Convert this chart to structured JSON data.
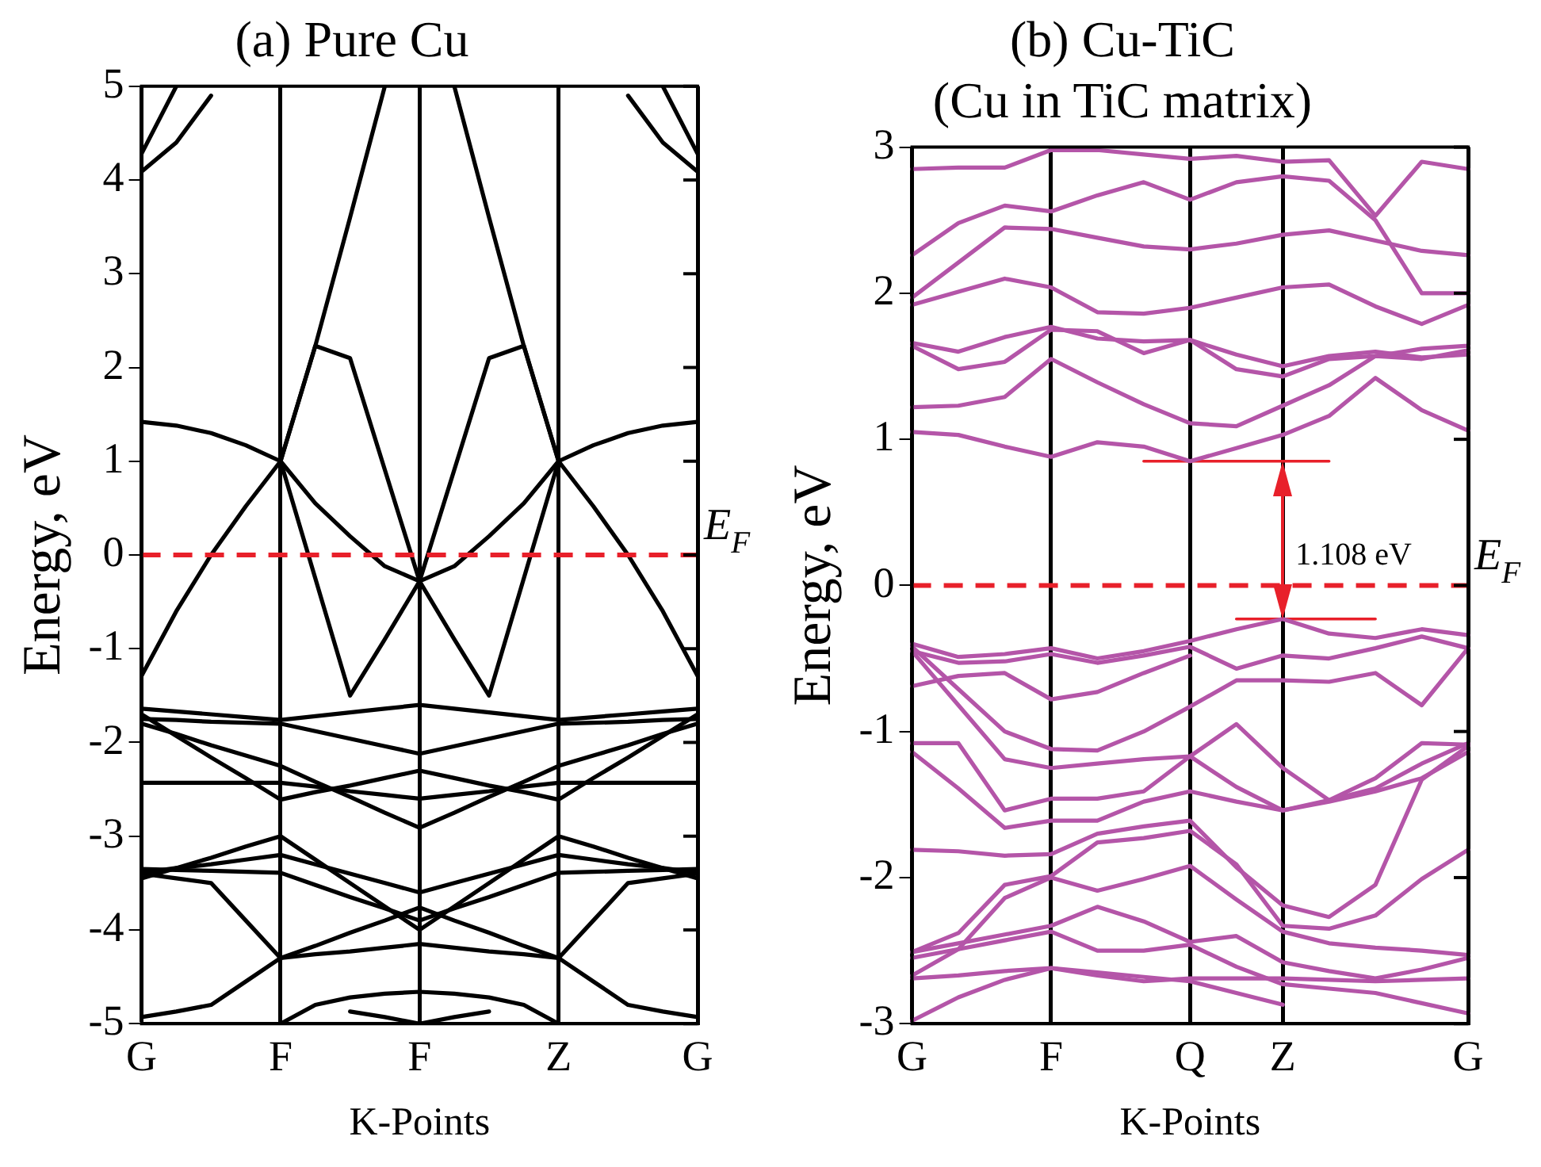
{
  "chart_data": [
    {
      "type": "line",
      "title": "(a) Pure Cu",
      "xlabel": "K-Points",
      "ylabel": "Energy, eV",
      "color": "#000000",
      "marker": "none",
      "grid": "x",
      "legend": false,
      "categories": [
        "G",
        null,
        null,
        null,
        "F",
        null,
        null,
        null,
        "F",
        null,
        null,
        null,
        "Z",
        null,
        null,
        null,
        "G"
      ],
      "ylim": [
        -5,
        5
      ],
      "yticks": [
        -5,
        -4,
        -3,
        -2,
        -1,
        0,
        1,
        2,
        3,
        4,
        5
      ],
      "ref_lines": [
        {
          "axis": "y",
          "value": 0,
          "label": "E$_{F}$",
          "color": "#e8202a",
          "line_style": "dashed"
        }
      ],
      "series": [
        {
          "values": [
            1.42,
            1.38,
            1.3,
            1.17,
            1.0,
            2.23,
            3.6,
            5.0,
            null,
            null,
            null,
            null,
            null,
            null,
            null,
            null,
            null
          ]
        },
        {
          "values": [
            null,
            null,
            null,
            null,
            null,
            null,
            null,
            null,
            null,
            5.0,
            3.6,
            2.23,
            1.0,
            1.17,
            1.3,
            1.38,
            1.42
          ]
        },
        {
          "values": [
            -1.29,
            -0.6,
            0.0,
            0.52,
            1.0,
            0.55,
            0.2,
            -0.12,
            -0.28,
            -0.12,
            0.2,
            0.55,
            1.0,
            0.52,
            0.0,
            -0.6,
            -1.29
          ]
        },
        {
          "values": [
            null,
            null,
            null,
            null,
            1.0,
            2.23,
            2.1,
            0.91,
            -0.28,
            -0.9,
            -1.5,
            -0.25,
            1.0,
            null,
            null,
            null,
            null
          ]
        },
        {
          "values": [
            null,
            null,
            null,
            null,
            1.0,
            -0.25,
            -1.5,
            -0.9,
            -0.28,
            0.91,
            2.1,
            2.23,
            1.0,
            null,
            null,
            null,
            null
          ]
        },
        {
          "values": [
            4.09,
            4.4,
            4.9,
            null,
            null,
            null,
            null,
            null,
            null,
            null,
            null,
            null,
            null,
            null,
            null,
            null,
            null
          ]
        },
        {
          "values": [
            4.28,
            5.0,
            null,
            null,
            null,
            null,
            null,
            null,
            null,
            null,
            null,
            null,
            null,
            null,
            null,
            null,
            null
          ]
        },
        {
          "values": [
            null,
            null,
            null,
            null,
            null,
            null,
            null,
            null,
            null,
            null,
            null,
            null,
            null,
            null,
            4.9,
            4.4,
            4.09
          ]
        },
        {
          "values": [
            null,
            null,
            null,
            null,
            null,
            null,
            null,
            null,
            null,
            null,
            null,
            null,
            null,
            null,
            null,
            5.0,
            4.28
          ]
        },
        {
          "values": [
            -1.64,
            -1.67,
            -1.7,
            -1.73,
            -1.76,
            -1.72,
            -1.68,
            -1.64,
            -1.6,
            -1.64,
            -1.68,
            -1.72,
            -1.76,
            -1.73,
            -1.7,
            -1.67,
            -1.64
          ]
        },
        {
          "values": [
            -1.75,
            -1.76,
            -1.78,
            -1.79,
            -1.8,
            -1.88,
            -1.96,
            -2.04,
            -2.12,
            -2.04,
            -1.96,
            -1.88,
            -1.8,
            -1.79,
            -1.78,
            -1.76,
            -1.75
          ]
        },
        {
          "values": [
            -2.43,
            -2.43,
            -2.43,
            -2.43,
            -2.43,
            -2.47,
            -2.52,
            -2.56,
            -2.6,
            -2.56,
            -2.52,
            -2.47,
            -2.43,
            -2.43,
            -2.43,
            -2.43,
            -2.43
          ]
        },
        {
          "values": [
            -1.7,
            -1.93,
            -2.16,
            -2.38,
            -2.61,
            -2.53,
            -2.46,
            -2.38,
            -2.3,
            -2.38,
            -2.46,
            -2.53,
            -2.61,
            -2.38,
            -2.16,
            -1.93,
            -1.7
          ]
        },
        {
          "values": [
            -1.8,
            -1.91,
            -2.03,
            -2.14,
            -2.25,
            -2.42,
            -2.58,
            -2.75,
            -2.91,
            -2.75,
            -2.58,
            -2.42,
            -2.25,
            -2.14,
            -2.03,
            -1.91,
            -1.8
          ]
        },
        {
          "values": [
            -3.39,
            -3.34,
            -3.3,
            -3.25,
            -3.2,
            -3.3,
            -3.4,
            -3.5,
            -3.6,
            -3.5,
            -3.4,
            -3.3,
            -3.2,
            -3.25,
            -3.3,
            -3.34,
            -3.39
          ]
        },
        {
          "values": [
            -3.35,
            -3.36,
            -3.37,
            -3.38,
            -3.39,
            -3.52,
            -3.65,
            -3.77,
            -3.9,
            -3.77,
            -3.65,
            -3.52,
            -3.39,
            -3.38,
            -3.37,
            -3.36,
            -3.35
          ]
        },
        {
          "values": [
            -3.4,
            -3.45,
            -3.5,
            -3.9,
            -4.3,
            -4.17,
            -4.03,
            -3.9,
            -3.76,
            -3.9,
            -4.03,
            -4.17,
            -4.3,
            -3.9,
            -3.5,
            -3.45,
            -3.4
          ]
        },
        {
          "values": [
            -3.45,
            -3.34,
            -3.23,
            -3.11,
            -3.0,
            -3.25,
            -3.5,
            -3.75,
            -4.0,
            -3.75,
            -3.5,
            -3.25,
            -3.0,
            -3.11,
            -3.23,
            -3.34,
            -3.45
          ]
        },
        {
          "values": [
            -4.93,
            -4.87,
            -4.8,
            -4.55,
            -4.3,
            -4.26,
            -4.23,
            -4.19,
            -4.15,
            -4.19,
            -4.23,
            -4.26,
            -4.3,
            -4.55,
            -4.8,
            -4.87,
            -4.93
          ]
        },
        {
          "values": [
            null,
            null,
            null,
            null,
            -5.0,
            -4.8,
            -4.72,
            -4.68,
            -4.66,
            -4.68,
            -4.72,
            -4.8,
            -5.0,
            null,
            null,
            null,
            null
          ]
        },
        {
          "values": [
            null,
            null,
            null,
            null,
            null,
            null,
            -4.87,
            -4.93,
            -5.0,
            -4.93,
            -4.87,
            null,
            null,
            null,
            null,
            null,
            null
          ]
        }
      ]
    },
    {
      "type": "line",
      "title": "(b) Cu-TiC",
      "subtitle": "(Cu in TiC matrix)",
      "xlabel": "K-Points",
      "ylabel": "Energy, eV",
      "color": "#b455a8",
      "marker": "none",
      "grid": "x",
      "legend": false,
      "categories": [
        "G",
        null,
        null,
        "F",
        null,
        null,
        "Q",
        null,
        "Z",
        null,
        null,
        null,
        "G"
      ],
      "ylim": [
        -3,
        3
      ],
      "yticks": [
        -3,
        -2,
        -1,
        0,
        1,
        2,
        3
      ],
      "ref_lines": [
        {
          "axis": "y",
          "value": 0,
          "label": "E$_{F}$",
          "color": "#e8202a",
          "line_style": "dashed"
        }
      ],
      "annotations": [
        "1.108 eV"
      ],
      "series": [
        {
          "values": [
            1.05,
            1.03,
            0.95,
            0.88,
            0.98,
            0.95,
            0.85,
            0.94,
            1.03,
            1.16,
            1.42,
            1.2,
            1.06
          ]
        },
        {
          "values": [
            1.22,
            1.23,
            1.29,
            1.55,
            1.39,
            1.24,
            1.11,
            1.09,
            1.23,
            1.37,
            1.57,
            1.55,
            1.61
          ]
        },
        {
          "values": [
            1.64,
            1.48,
            1.53,
            1.75,
            1.74,
            1.59,
            1.68,
            1.48,
            1.43,
            1.55,
            1.57,
            1.62,
            1.64
          ]
        },
        {
          "values": [
            1.66,
            1.6,
            1.7,
            1.77,
            1.69,
            1.67,
            1.68,
            1.58,
            1.5,
            1.57,
            1.6,
            1.56,
            1.58
          ]
        },
        {
          "values": [
            1.92,
            2.01,
            2.1,
            2.04,
            1.87,
            1.86,
            1.9,
            1.97,
            2.04,
            2.06,
            1.91,
            1.79,
            1.92
          ]
        },
        {
          "values": [
            1.97,
            2.21,
            2.45,
            2.44,
            2.38,
            2.32,
            2.3,
            2.34,
            2.4,
            2.43,
            2.36,
            2.29,
            2.26
          ]
        },
        {
          "values": [
            2.26,
            2.48,
            2.6,
            2.56,
            2.67,
            2.76,
            2.64,
            2.76,
            2.8,
            2.77,
            2.5,
            2.0,
            2.0
          ]
        },
        {
          "values": [
            2.85,
            2.86,
            2.86,
            2.98,
            2.98,
            2.95,
            2.92,
            2.94,
            2.9,
            2.91,
            2.53,
            2.9,
            2.85
          ]
        },
        {
          "values": [
            -0.4,
            -0.49,
            -0.47,
            -0.43,
            -0.5,
            -0.45,
            -0.38,
            -0.3,
            -0.23,
            -0.33,
            -0.36,
            -0.3,
            -0.34
          ]
        },
        {
          "values": [
            -0.45,
            -0.53,
            -0.52,
            -0.47,
            -0.53,
            -0.48,
            -0.42,
            -0.57,
            -0.48,
            -0.5,
            -0.43,
            -0.35,
            -0.43
          ]
        },
        {
          "values": [
            -0.42,
            -0.71,
            -1.0,
            -1.12,
            -1.13,
            -1.0,
            -0.83,
            -0.65,
            -0.65,
            -0.66,
            -0.6,
            -0.82,
            -0.43
          ]
        },
        {
          "values": [
            -0.45,
            -0.82,
            -1.19,
            -1.25,
            -1.22,
            -1.19,
            -1.17,
            -1.38,
            -1.54,
            -1.47,
            -1.32,
            -1.08,
            -1.09
          ]
        },
        {
          "values": [
            -0.69,
            -0.62,
            -0.6,
            -0.78,
            -0.73,
            -0.6,
            -0.48,
            null,
            null,
            null,
            null,
            null,
            null
          ]
        },
        {
          "values": [
            -1.08,
            -1.08,
            -1.54,
            -1.46,
            -1.46,
            -1.41,
            -1.17,
            -0.95,
            -1.25,
            -1.47,
            -1.39,
            -1.22,
            -1.08
          ]
        },
        {
          "values": [
            -1.14,
            -1.39,
            -1.66,
            -1.61,
            -1.61,
            -1.48,
            -1.41,
            -1.48,
            -1.54,
            -1.48,
            -1.41,
            -1.32,
            -1.14
          ]
        },
        {
          "values": [
            -1.81,
            -1.82,
            -1.85,
            -1.84,
            -1.7,
            -1.65,
            -1.61,
            -1.93,
            -2.19,
            -2.27,
            -2.05,
            -1.33,
            -1.1
          ]
        },
        {
          "values": [
            -2.51,
            -2.38,
            -2.05,
            -1.99,
            -1.76,
            -1.73,
            -1.68,
            -1.91,
            -2.33,
            -2.35,
            -2.26,
            -2.01,
            -1.81
          ]
        },
        {
          "values": [
            -2.67,
            -2.49,
            -2.14,
            -2.0,
            -2.09,
            -2.01,
            -1.92,
            -2.15,
            -2.37,
            -2.45,
            -2.48,
            -2.5,
            -2.53
          ]
        },
        {
          "values": [
            -2.51,
            -2.45,
            -2.39,
            -2.33,
            -2.2,
            -2.3,
            -2.44,
            -2.4,
            -2.58,
            -2.64,
            -2.69,
            -2.63,
            -2.55
          ]
        },
        {
          "values": [
            -2.55,
            -2.49,
            -2.43,
            -2.37,
            -2.5,
            -2.5,
            -2.46,
            -2.61,
            -2.73,
            -2.76,
            -2.79,
            -2.86,
            -2.93
          ]
        },
        {
          "values": [
            -2.69,
            -2.67,
            -2.64,
            -2.62,
            -2.67,
            -2.71,
            -2.69,
            -2.69,
            -2.69,
            -2.7,
            -2.71,
            -2.7,
            -2.69
          ]
        },
        {
          "values": [
            -2.98,
            -2.82,
            -2.7,
            -2.62,
            -2.65,
            -2.68,
            -2.71,
            -2.79,
            -2.87,
            null,
            null,
            null,
            null
          ]
        },
        {
          "values": [
            null,
            null,
            null,
            null,
            null,
            0.85,
            0.85,
            0.85,
            0.85,
            0.85,
            null,
            null,
            null
          ],
          "color": "#e8202a"
        },
        {
          "values": [
            null,
            null,
            null,
            null,
            null,
            null,
            null,
            -0.23,
            -0.23,
            -0.23,
            -0.23,
            null,
            null
          ],
          "color": "#e8202a"
        }
      ]
    }
  ]
}
